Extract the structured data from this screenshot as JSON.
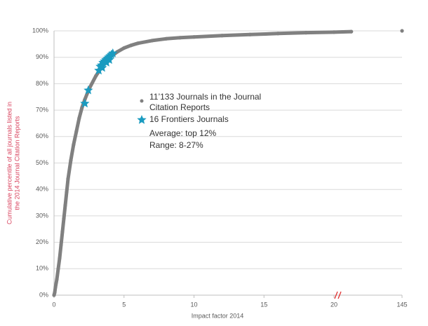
{
  "chart_data": {
    "type": "scatter",
    "xlabel": "Impact factor 2014",
    "ylabel": [
      "Cumulative percentile of all journals listed in",
      "the 2014 Journal Citation Reports"
    ],
    "xlim": [
      0,
      145
    ],
    "xticks": [
      0,
      5,
      10,
      15,
      20,
      145
    ],
    "x_axis_break": true,
    "ylim": [
      0,
      100
    ],
    "yticks": [
      {
        "value": 0,
        "label": "0%"
      },
      {
        "value": 10,
        "label": "10%"
      },
      {
        "value": 20,
        "label": "20%"
      },
      {
        "value": 30,
        "label": "30%"
      },
      {
        "value": 40,
        "label": "40%"
      },
      {
        "value": 50,
        "label": "50%"
      },
      {
        "value": 60,
        "label": "60%"
      },
      {
        "value": 70,
        "label": "70%"
      },
      {
        "value": 80,
        "label": "80%"
      },
      {
        "value": 90,
        "label": "90%"
      },
      {
        "value": 100,
        "label": "100%"
      }
    ],
    "grid": true,
    "series": [
      {
        "name": "11’133 Journals in the Journal Citation Reports",
        "color": "#808080",
        "marker": "dot",
        "x": [
          0,
          0.05,
          0.1,
          0.2,
          0.3,
          0.4,
          0.5,
          0.6,
          0.7,
          0.8,
          0.9,
          1.0,
          1.2,
          1.4,
          1.6,
          1.8,
          2.0,
          2.2,
          2.5,
          3,
          3.5,
          4,
          4.5,
          5,
          5.5,
          6,
          7,
          8,
          9,
          10,
          12,
          14,
          16,
          18,
          20,
          21.3,
          null,
          145
        ],
        "values": [
          0,
          1,
          3,
          6,
          10,
          14,
          19,
          24,
          29,
          34,
          39,
          44,
          51,
          57,
          62,
          67,
          71,
          74,
          78,
          83,
          87,
          90,
          92,
          93.5,
          94.5,
          95.3,
          96.3,
          97,
          97.4,
          97.7,
          98.2,
          98.6,
          99,
          99.3,
          99.5,
          99.7,
          null,
          100
        ]
      },
      {
        "name": "16 Frontiers Journals",
        "color": "#1a9bc0",
        "marker": "star",
        "x": [
          2.2,
          2.45,
          3.2,
          3.3,
          3.4,
          3.45,
          3.5,
          3.6,
          3.7,
          3.75,
          3.8,
          3.9,
          3.95,
          4.0,
          4.1,
          4.2
        ],
        "values": [
          72.5,
          77.5,
          85,
          86.5,
          87,
          86,
          88,
          88.5,
          89,
          88,
          89.5,
          90,
          89,
          90.5,
          91,
          91.5
        ]
      }
    ],
    "annotations": [
      "Average: top 12%",
      "Range: 8-27%"
    ]
  }
}
